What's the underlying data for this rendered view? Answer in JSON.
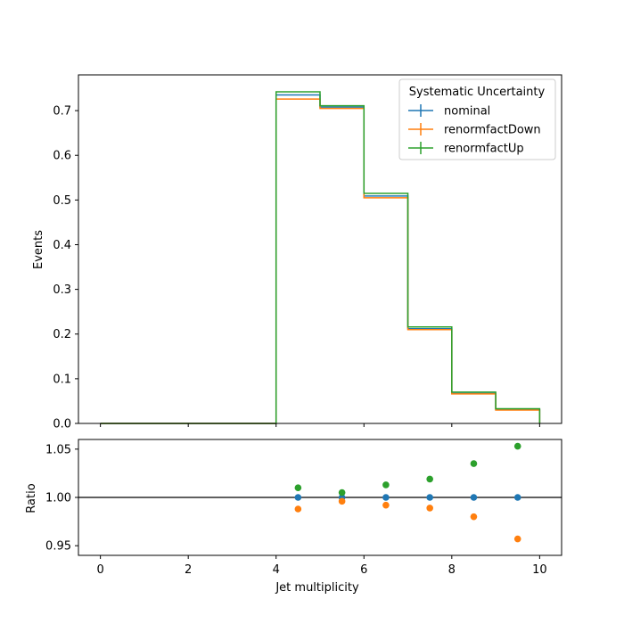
{
  "chart_data": [
    {
      "type": "step",
      "panel": "main",
      "xlabel": "",
      "ylabel": "Events",
      "xlim": [
        -0.5,
        10.5
      ],
      "ylim": [
        0.0,
        0.78
      ],
      "xticks": [
        0,
        2,
        4,
        6,
        8,
        10
      ],
      "yticks": [
        0.0,
        0.1,
        0.2,
        0.3,
        0.4,
        0.5,
        0.6,
        0.7
      ],
      "ytick_labels": [
        "0.0",
        "0.1",
        "0.2",
        "0.3",
        "0.4",
        "0.5",
        "0.6",
        "0.7"
      ],
      "bin_edges": [
        0,
        1,
        2,
        3,
        4,
        5,
        6,
        7,
        8,
        9,
        10
      ],
      "series": [
        {
          "name": "nominal",
          "color": "#1f77b4",
          "values": [
            0,
            0,
            0,
            0,
            0.735,
            0.708,
            0.509,
            0.212,
            0.067,
            0.031
          ]
        },
        {
          "name": "renormfactDown",
          "color": "#ff7f0e",
          "values": [
            0,
            0,
            0,
            0,
            0.726,
            0.705,
            0.505,
            0.21,
            0.066,
            0.03
          ]
        },
        {
          "name": "renormfactUp",
          "color": "#2ca02c",
          "values": [
            0,
            0,
            0,
            0,
            0.742,
            0.711,
            0.515,
            0.216,
            0.07,
            0.033
          ]
        }
      ],
      "legend": {
        "title": "Systematic Uncertainty",
        "placement": "top-right"
      },
      "grid": false
    },
    {
      "type": "scatter",
      "panel": "ratio",
      "xlabel": "Jet multiplicity",
      "ylabel": "Ratio",
      "xlim": [
        -0.5,
        10.5
      ],
      "ylim": [
        0.94,
        1.06
      ],
      "xticks": [
        0,
        2,
        4,
        6,
        8,
        10
      ],
      "xtick_labels": [
        "0",
        "2",
        "4",
        "6",
        "8",
        "10"
      ],
      "yticks": [
        0.95,
        1.0,
        1.05
      ],
      "ytick_labels": [
        "0.95",
        "1.00",
        "1.05"
      ],
      "reference_line": 1.0,
      "x": [
        4.5,
        5.5,
        6.5,
        7.5,
        8.5,
        9.5
      ],
      "series": [
        {
          "name": "nominal",
          "color": "#1f77b4",
          "values": [
            1.0,
            1.0,
            1.0,
            1.0,
            1.0,
            1.0
          ]
        },
        {
          "name": "renormfactDown",
          "color": "#ff7f0e",
          "values": [
            0.988,
            0.996,
            0.992,
            0.989,
            0.98,
            0.957
          ]
        },
        {
          "name": "renormfactUp",
          "color": "#2ca02c",
          "values": [
            1.01,
            1.005,
            1.013,
            1.019,
            1.035,
            1.053
          ]
        }
      ],
      "grid": false
    }
  ]
}
